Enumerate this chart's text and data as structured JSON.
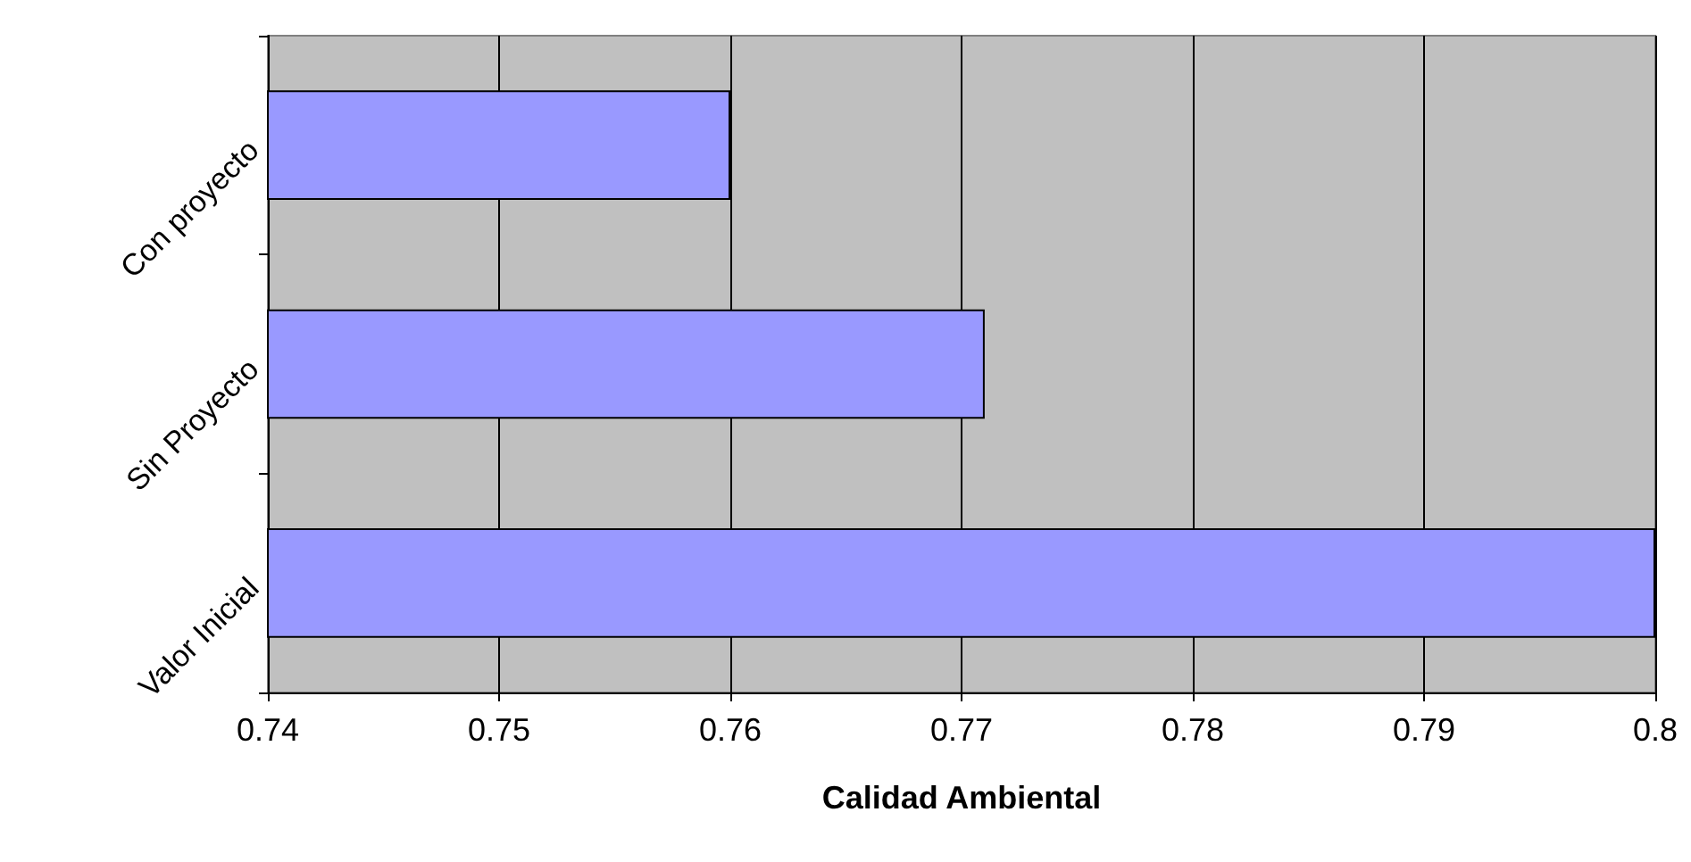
{
  "chart_data": {
    "type": "bar",
    "orientation": "horizontal",
    "xlabel": "Calidad Ambiental",
    "categories": [
      "Con proyecto",
      "Sin Proyecto",
      "Valor Inicial"
    ],
    "values": [
      0.76,
      0.771,
      0.8
    ],
    "color": "#9999ff",
    "xlim": [
      0.74,
      0.8
    ],
    "xticks": [
      0.74,
      0.75,
      0.76,
      0.77,
      0.78,
      0.79,
      0.8
    ],
    "grid": "x"
  }
}
